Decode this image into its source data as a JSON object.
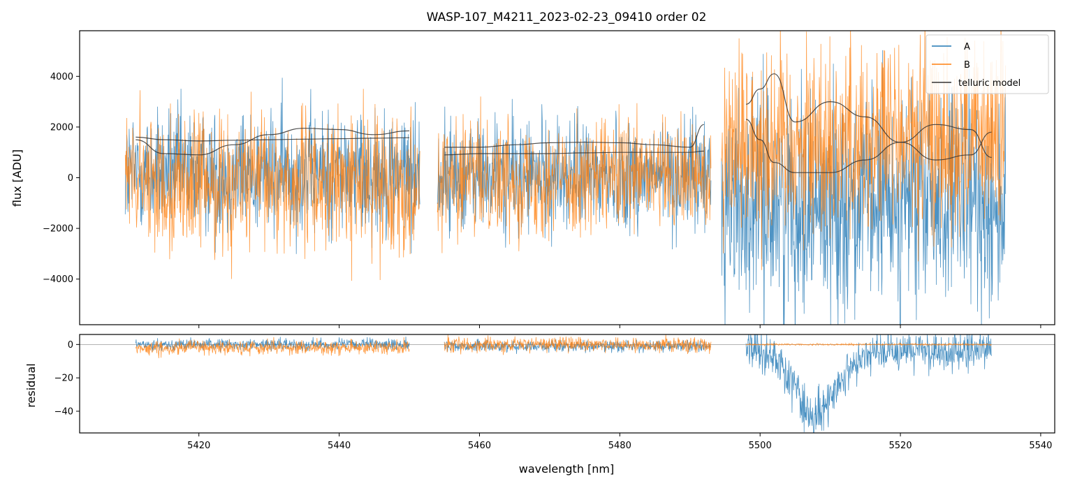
{
  "chart_data": {
    "type": "line",
    "title": "WASP-107_M4211_2023-02-23_09410  order 02",
    "xlabel": "wavelength [nm]",
    "x_ticks": [
      "5420",
      "5440",
      "5460",
      "5480",
      "5500",
      "5520",
      "5540"
    ],
    "xlim": [
      5403,
      5542
    ],
    "colors": {
      "A": "#1f77b4",
      "B": "#ff7f0e",
      "model": "#333333"
    },
    "panels": [
      {
        "name": "flux",
        "ylabel": "flux [ADU]",
        "ylim": [
          -5800,
          5800
        ],
        "y_ticks": [
          "4000",
          "2000",
          "0",
          "−2000",
          "−4000"
        ],
        "legend": {
          "location": "upper right",
          "entries": [
            "A",
            "B",
            "telluric model"
          ]
        },
        "segments": [
          {
            "x_range": [
              5409.5,
              5451.5
            ],
            "A_center": 200,
            "A_spread": 2200,
            "B_center": -200,
            "B_spread": 2400
          },
          {
            "x_range": [
              5454,
              5493
            ],
            "A_center": 100,
            "A_spread": 2000,
            "B_center": 0,
            "B_spread": 2000
          },
          {
            "x_range": [
              5494.5,
              5535
            ],
            "A_center": -1000,
            "A_spread": 3800,
            "B_center": 1500,
            "B_spread": 3500
          }
        ],
        "telluric_model": [
          {
            "x": [
              5411,
              5415,
              5420,
              5425,
              5430,
              5435,
              5440,
              5445,
              5450
            ],
            "A": [
              1600,
              1500,
              1450,
              1480,
              1500,
              1520,
              1540,
              1560,
              1580
            ],
            "B": [
              1500,
              950,
              900,
              1300,
              1700,
              1950,
              1900,
              1700,
              1850
            ]
          },
          {
            "x": [
              5455,
              5460,
              5465,
              5470,
              5475,
              5480,
              5485,
              5490,
              5492
            ],
            "A": [
              900,
              950,
              950,
              950,
              980,
              1000,
              1000,
              1000,
              1050
            ],
            "B": [
              1200,
              1200,
              1300,
              1380,
              1400,
              1380,
              1300,
              1200,
              2100
            ]
          },
          {
            "x": [
              5498,
              5500,
              5502,
              5505,
              5510,
              5515,
              5520,
              5525,
              5530,
              5533
            ],
            "A": [
              2900,
              3500,
              4100,
              2200,
              3000,
              2400,
              1400,
              700,
              900,
              1800
            ],
            "B": [
              2300,
              1500,
              600,
              200,
              200,
              700,
              1400,
              2100,
              1900,
              800
            ]
          }
        ]
      },
      {
        "name": "residual",
        "ylabel": "residual",
        "ylim": [
          -53,
          6
        ],
        "y_ticks": [
          "0",
          "−20",
          "−40"
        ],
        "reference_line": 0,
        "segments": [
          {
            "x_range": [
              5411,
              5450
            ],
            "A_center": 0,
            "A_spread": 3,
            "B_center": -2,
            "B_spread": 4
          },
          {
            "x_range": [
              5455,
              5493
            ],
            "A_center": -1,
            "A_spread": 3,
            "B_center": 0,
            "B_spread": 4
          },
          {
            "x_range": [
              5498,
              5533
            ],
            "A_center": -20,
            "A_spread": 30,
            "B_center": 0,
            "B_spread": 0.5
          }
        ]
      }
    ]
  }
}
